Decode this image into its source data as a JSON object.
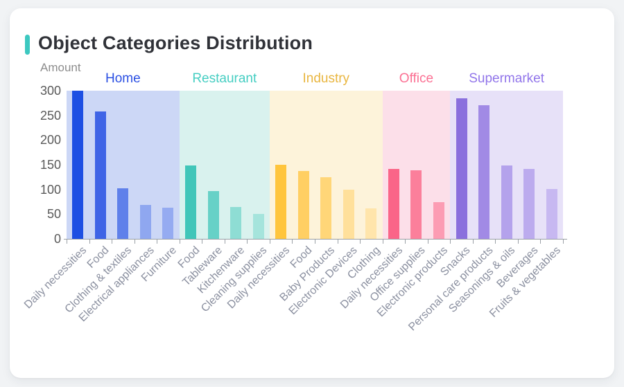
{
  "header": {
    "title": "Object Categories Distribution",
    "accent_color": "#3cc8c0"
  },
  "chart_data": {
    "type": "bar",
    "title": "Object Categories Distribution",
    "xlabel": "",
    "ylabel": "Amount",
    "ylim": [
      0,
      300
    ],
    "ytick_interval": 50,
    "ytick_labels": [
      "0",
      "50",
      "100",
      "150",
      "200",
      "250",
      "300"
    ],
    "grid": false,
    "legend_position": "top",
    "groups": [
      {
        "name": "Home",
        "label_color": "#2b50e3",
        "band_color": "#ccd7f6",
        "bars": [
          {
            "label": "Daily necessities",
            "value": 300,
            "color": "#1d4fe3"
          },
          {
            "label": "Food",
            "value": 258,
            "color": "#3f64e6"
          },
          {
            "label": "Clothing & textiles",
            "value": 102,
            "color": "#5f80ea"
          },
          {
            "label": "Electrical appliances",
            "value": 68,
            "color": "#8fa7f0"
          },
          {
            "label": "Furniture",
            "value": 63,
            "color": "#95abf1"
          }
        ]
      },
      {
        "name": "Restaurant",
        "label_color": "#45cec2",
        "band_color": "#d9f2ee",
        "bars": [
          {
            "label": "Food",
            "value": 148,
            "color": "#41c6b9"
          },
          {
            "label": "Tableware",
            "value": 97,
            "color": "#67d1c7"
          },
          {
            "label": "Kitchenware",
            "value": 65,
            "color": "#8eddd4"
          },
          {
            "label": "Cleaning supplies",
            "value": 50,
            "color": "#a5e4dc"
          }
        ]
      },
      {
        "name": "Industry",
        "label_color": "#e9b640",
        "band_color": "#fdf3da",
        "bars": [
          {
            "label": "Daily necessities",
            "value": 150,
            "color": "#ffc53d"
          },
          {
            "label": "Food",
            "value": 138,
            "color": "#ffcf63"
          },
          {
            "label": "Baby Products",
            "value": 125,
            "color": "#ffd678"
          },
          {
            "label": "Electronic Devices",
            "value": 99,
            "color": "#ffe09b"
          },
          {
            "label": "Clothing",
            "value": 62,
            "color": "#ffe5ab"
          }
        ]
      },
      {
        "name": "Office",
        "label_color": "#fb7093",
        "band_color": "#fcdfe9",
        "bars": [
          {
            "label": "Daily necessities",
            "value": 142,
            "color": "#fa6588"
          },
          {
            "label": "Office supplies",
            "value": 139,
            "color": "#fb7f9b"
          },
          {
            "label": "Electronic products",
            "value": 75,
            "color": "#fc9cb3"
          }
        ]
      },
      {
        "name": "Supermarket",
        "label_color": "#9175ea",
        "band_color": "#e7e1f8",
        "bars": [
          {
            "label": "Snacks",
            "value": 285,
            "color": "#8a70dd"
          },
          {
            "label": "Personal care products",
            "value": 271,
            "color": "#a18ae5"
          },
          {
            "label": "Seasonings & oils",
            "value": 148,
            "color": "#b4a2ec"
          },
          {
            "label": "Beverages",
            "value": 141,
            "color": "#bcabee"
          },
          {
            "label": "Fruits & vegetables",
            "value": 101,
            "color": "#c7b8f1"
          }
        ]
      }
    ]
  }
}
